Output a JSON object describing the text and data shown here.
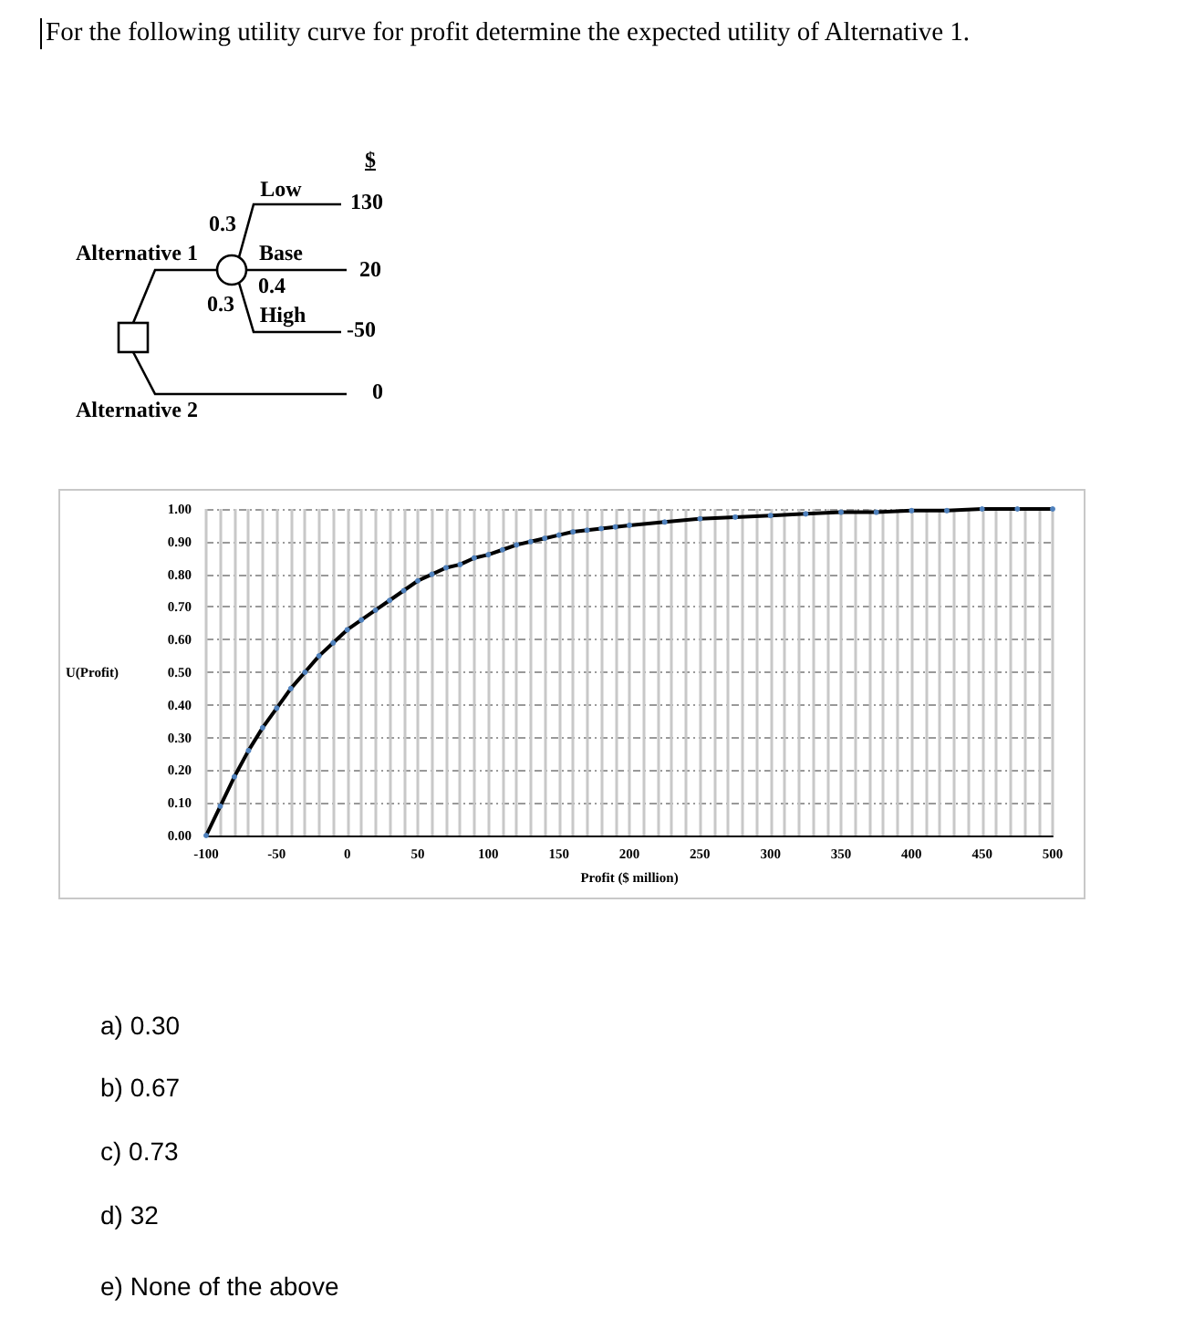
{
  "chart_data": {
    "type": "line",
    "title": "For the following utility curve for profit determine the expected utility of Alternative 1.",
    "xlabel": "Profit ($ million)",
    "ylabel": "U(Profit)",
    "annotations": [
      "$",
      "Low",
      "130",
      "0.3",
      "Alternative 1",
      "Base",
      "20",
      "0.4",
      "0.3",
      "High",
      "-50",
      "0",
      "Alternative 2",
      "a)  0.30",
      "b)  0.67",
      "c)  0.73",
      "d)  32",
      "e)  None of the above"
    ],
    "x": [
      -100,
      -90,
      -80,
      -70,
      -60,
      -50,
      -40,
      -30,
      -20,
      -10,
      0,
      10,
      20,
      30,
      40,
      50,
      60,
      70,
      80,
      90,
      100,
      110,
      120,
      130,
      140,
      150,
      160,
      170,
      180,
      190,
      200,
      225,
      250,
      275,
      300,
      325,
      350,
      375,
      400,
      425,
      450,
      475,
      500
    ],
    "series": [
      {
        "color": "#000000",
        "values": [
          0,
          0.09,
          0.18,
          0.26,
          0.33,
          0.39,
          0.45,
          0.5,
          0.55,
          0.59,
          0.63,
          0.66,
          0.69,
          0.72,
          0.75,
          0.78,
          0.8,
          0.82,
          0.83,
          0.85,
          0.86,
          0.875,
          0.89,
          0.9,
          0.91,
          0.92,
          0.93,
          0.935,
          0.94,
          0.945,
          0.95,
          0.96,
          0.97,
          0.975,
          0.98,
          0.985,
          0.99,
          0.99,
          0.995,
          0.995,
          1,
          1,
          1
        ]
      }
    ],
    "xlim": [
      -100,
      500
    ],
    "xticks": [
      -100,
      -50,
      0,
      50,
      100,
      150,
      200,
      250,
      300,
      350,
      400,
      450,
      500
    ],
    "ylim": [
      0,
      1
    ],
    "yticks": [
      {
        "value": 0,
        "label": "0.00"
      },
      {
        "value": 0.1,
        "label": "0.10"
      },
      {
        "value": 0.2,
        "label": "0.20"
      },
      {
        "value": 0.3,
        "label": "0.30"
      },
      {
        "value": 0.4,
        "label": "0.40"
      },
      {
        "value": 0.5,
        "label": "0.50"
      },
      {
        "value": 0.6,
        "label": "0.60"
      },
      {
        "value": 0.7,
        "label": "0.70"
      },
      {
        "value": 0.8,
        "label": "0.80"
      },
      {
        "value": 0.9,
        "label": "0.90"
      },
      {
        "value": 1,
        "label": "1.00"
      }
    ],
    "grid": true,
    "marker": "circle",
    "line_style": "solid"
  }
}
